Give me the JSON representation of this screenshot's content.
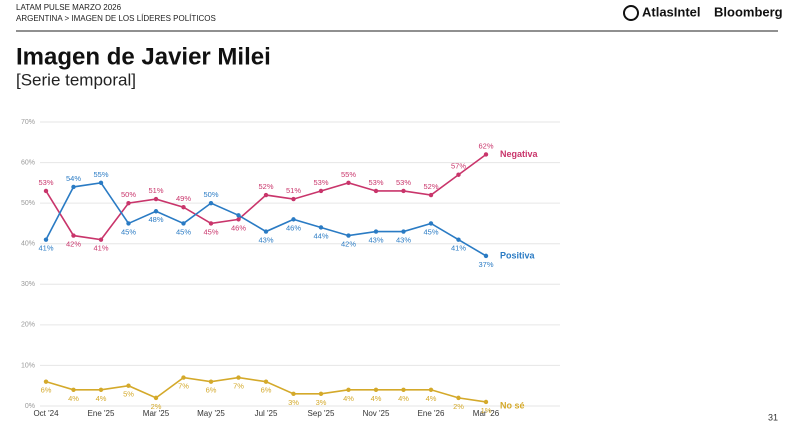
{
  "header": {
    "report": "LATAM PULSE MARZO 2026",
    "breadcrumb": "ARGENTINA > IMAGEN DE LOS LÍDERES POLÍTICOS",
    "brand": "AtlasIntel",
    "partner": "Bloomberg",
    "page_number": "31"
  },
  "chart_data": {
    "type": "line",
    "title": "Imagen de Javier Milei",
    "subtitle": "[Serie temporal]",
    "categories": [
      "Oct '24",
      null,
      "Ene '25",
      null,
      "Mar '25",
      null,
      "May '25",
      null,
      "Jul '25",
      null,
      "Sep '25",
      null,
      "Nov '25",
      null,
      "Ene '26",
      null,
      "Mar '26"
    ],
    "series": [
      {
        "name": "Negativa",
        "color": "#c9356b",
        "values": [
          53,
          42,
          41,
          50,
          51,
          49,
          45,
          46,
          52,
          51,
          53,
          55,
          53,
          53,
          52,
          57,
          62
        ],
        "value_labels": [
          "53%",
          "42%",
          "41%",
          "50%",
          "51%",
          "49%",
          "45%",
          "46%",
          "52%",
          "51%",
          "53%",
          "55%",
          "53%",
          "53%",
          "52%",
          "57%",
          "62%"
        ]
      },
      {
        "name": "Positiva",
        "color": "#2a7bc4",
        "values": [
          41,
          54,
          55,
          45,
          48,
          45,
          50,
          47,
          43,
          46,
          44,
          42,
          43,
          43,
          45,
          41,
          37
        ],
        "value_labels": [
          "41%",
          "54%",
          "55%",
          "45%",
          "48%",
          "45%",
          "50%",
          null,
          "43%",
          "46%",
          "44%",
          "42%",
          "43%",
          "43%",
          "45%",
          "41%",
          "37%"
        ]
      },
      {
        "name": "No sé",
        "color": "#d4a92a",
        "values": [
          6,
          4,
          4,
          5,
          2,
          7,
          6,
          7,
          6,
          3,
          3,
          4,
          4,
          4,
          4,
          2,
          1
        ],
        "value_labels": [
          "6%",
          "4%",
          "4%",
          "5%",
          "2%",
          "7%",
          "6%",
          "7%",
          "6%",
          "3%",
          "3%",
          "4%",
          "4%",
          "4%",
          "4%",
          "2%",
          "1%"
        ]
      }
    ],
    "ylim": [
      0,
      70
    ],
    "yticks": [
      {
        "value": 0,
        "label": "0%"
      },
      {
        "value": 10,
        "label": "10%"
      },
      {
        "value": 20,
        "label": "20%"
      },
      {
        "value": 30,
        "label": "30%"
      },
      {
        "value": 40,
        "label": "40%"
      },
      {
        "value": 50,
        "label": "50%"
      },
      {
        "value": 60,
        "label": "60%"
      },
      {
        "value": 70,
        "label": "70%"
      }
    ],
    "grid": true
  }
}
